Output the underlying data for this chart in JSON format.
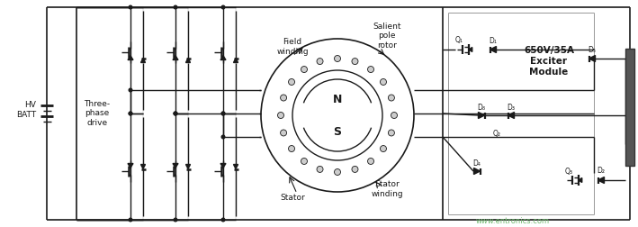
{
  "bg_color": "#ffffff",
  "line_color": "#1a1a1a",
  "text_color": "#1a1a1a",
  "watermark": "www.entronics.com",
  "watermark_color": "#70b870",
  "labels": {
    "hv_batt": "HV\nBATT",
    "three_phase": "Three-\nphase\ndrive",
    "field_winding": "Field\nwinding",
    "salient_pole": "Salient\npole\nrotor",
    "stator": "Stator",
    "stator_winding": "Stator\nwinding",
    "exciter": "650V/35A\nExciter\nModule",
    "N": "N",
    "S": "S"
  },
  "figsize": [
    7.09,
    2.52
  ],
  "dpi": 100
}
